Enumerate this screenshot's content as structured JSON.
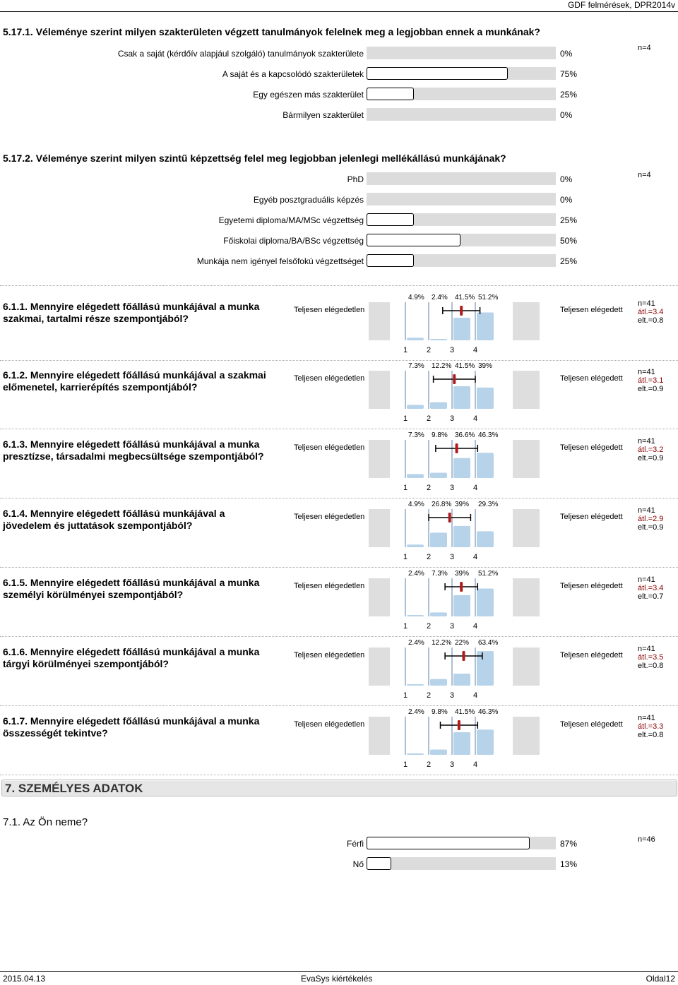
{
  "header": {
    "right_text": "GDF felmérések, DPR2014v"
  },
  "q5171": {
    "title_prefix": "5.17.1.",
    "title": "Véleménye szerint milyen szakterületen végzett tanulmányok felelnek meg a legjobban ennek a munkának?",
    "n": "n=4",
    "rows": [
      {
        "label": "Csak a saját (kérdőív alapjául szolgáló) tanulmányok szakterülete",
        "pct": "0%",
        "value": 0
      },
      {
        "label": "A saját és a kapcsolódó szakterületek",
        "pct": "75%",
        "value": 75
      },
      {
        "label": "Egy egészen más szakterület",
        "pct": "25%",
        "value": 25
      },
      {
        "label": "Bármilyen szakterület",
        "pct": "0%",
        "value": 0
      }
    ]
  },
  "q5172": {
    "title_prefix": "5.17.2.",
    "title": "Véleménye szerint milyen szintű képzettség felel meg legjobban jelenlegi mellékállású munkájának?",
    "n": "n=4",
    "rows": [
      {
        "label": "PhD",
        "pct": "0%",
        "value": 0
      },
      {
        "label": "Egyéb posztgraduális képzés",
        "pct": "0%",
        "value": 0
      },
      {
        "label": "Egyetemi diploma/MA/MSc végzettség",
        "pct": "25%",
        "value": 25
      },
      {
        "label": "Főiskolai diploma/BA/BSc végzettség",
        "pct": "50%",
        "value": 50
      },
      {
        "label": "Munkája nem igényel felsőfokú végzettséget",
        "pct": "25%",
        "value": 25
      }
    ]
  },
  "scale": {
    "left_pole": "Teljesen elégedetlen",
    "right_pole": "Teljesen elégedett",
    "ticks": [
      "1",
      "2",
      "3",
      "4"
    ]
  },
  "chart_data": [
    {
      "type": "bar",
      "id": "6.1.1",
      "title": "6.1.1. Mennyire elégedett főállású munkájával a munka szakmai, tartalmi része szempontjából?",
      "categories": [
        "1",
        "2",
        "3",
        "4"
      ],
      "values": [
        4.9,
        2.4,
        41.5,
        51.2
      ],
      "labels": [
        "4.9%",
        "2.4%",
        "41.5%",
        "51.2%"
      ],
      "n": "n=41",
      "mean": "átl.=3.4",
      "sd": "elt.=0.8",
      "mean_value": 3.4,
      "sd_value": 0.8
    },
    {
      "type": "bar",
      "id": "6.1.2",
      "title": "6.1.2. Mennyire elégedett főállású munkájával a szakmai előmenetel, karrierépítés szempontjából?",
      "categories": [
        "1",
        "2",
        "3",
        "4"
      ],
      "values": [
        7.3,
        12.2,
        41.5,
        39
      ],
      "labels": [
        "7.3%",
        "12.2%",
        "41.5%",
        "39%"
      ],
      "n": "n=41",
      "mean": "átl.=3.1",
      "sd": "elt.=0.9",
      "mean_value": 3.1,
      "sd_value": 0.9
    },
    {
      "type": "bar",
      "id": "6.1.3",
      "title": "6.1.3. Mennyire elégedett főállású munkájával a munka presztízse, társadalmi megbecsültsége szempontjából?",
      "categories": [
        "1",
        "2",
        "3",
        "4"
      ],
      "values": [
        7.3,
        9.8,
        36.6,
        46.3
      ],
      "labels": [
        "7.3%",
        "9.8%",
        "36.6%",
        "46.3%"
      ],
      "n": "n=41",
      "mean": "átl.=3.2",
      "sd": "elt.=0.9",
      "mean_value": 3.2,
      "sd_value": 0.9
    },
    {
      "type": "bar",
      "id": "6.1.4",
      "title": "6.1.4. Mennyire elégedett főállású munkájával a jövedelem és juttatások szempontjából?",
      "categories": [
        "1",
        "2",
        "3",
        "4"
      ],
      "values": [
        4.9,
        26.8,
        39,
        29.3
      ],
      "labels": [
        "4.9%",
        "26.8%",
        "39%",
        "29.3%"
      ],
      "n": "n=41",
      "mean": "átl.=2.9",
      "sd": "elt.=0.9",
      "mean_value": 2.9,
      "sd_value": 0.9
    },
    {
      "type": "bar",
      "id": "6.1.5",
      "title": "6.1.5. Mennyire elégedett főállású munkájával a munka személyi körülményei szempontjából?",
      "categories": [
        "1",
        "2",
        "3",
        "4"
      ],
      "values": [
        2.4,
        7.3,
        39,
        51.2
      ],
      "labels": [
        "2.4%",
        "7.3%",
        "39%",
        "51.2%"
      ],
      "n": "n=41",
      "mean": "átl.=3.4",
      "sd": "elt.=0.7",
      "mean_value": 3.4,
      "sd_value": 0.7
    },
    {
      "type": "bar",
      "id": "6.1.6",
      "title": "6.1.6. Mennyire elégedett főállású munkájával a munka tárgyi körülményei szempontjából?",
      "categories": [
        "1",
        "2",
        "3",
        "4"
      ],
      "values": [
        2.4,
        12.2,
        22,
        63.4
      ],
      "labels": [
        "2.4%",
        "12.2%",
        "22%",
        "63.4%"
      ],
      "n": "n=41",
      "mean": "átl.=3.5",
      "sd": "elt.=0.8",
      "mean_value": 3.5,
      "sd_value": 0.8
    },
    {
      "type": "bar",
      "id": "6.1.7",
      "title": "6.1.7. Mennyire elégedett főállású munkájával a munka összességét tekintve?",
      "categories": [
        "1",
        "2",
        "3",
        "4"
      ],
      "values": [
        2.4,
        9.8,
        41.5,
        46.3
      ],
      "labels": [
        "2.4%",
        "9.8%",
        "41.5%",
        "46.3%"
      ],
      "n": "n=41",
      "mean": "átl.=3.3",
      "sd": "elt.=0.8",
      "mean_value": 3.3,
      "sd_value": 0.8
    }
  ],
  "section7": {
    "band_title": "7. SZEMÉLYES ADATOK"
  },
  "q71": {
    "title": "7.1. Az Ön neme?",
    "n": "n=46",
    "rows": [
      {
        "label": "Férfi",
        "pct": "87%",
        "value": 87
      },
      {
        "label": "Nő",
        "pct": "13%",
        "value": 13
      }
    ]
  },
  "footer": {
    "date": "2015.04.13",
    "center": "EvaSys kiértékelés",
    "page": "Oldal12"
  },
  "colors": {
    "bar_fill": "#b7d3ea",
    "mean_marker": "#b01c1c",
    "track": "#dcdcdc"
  }
}
